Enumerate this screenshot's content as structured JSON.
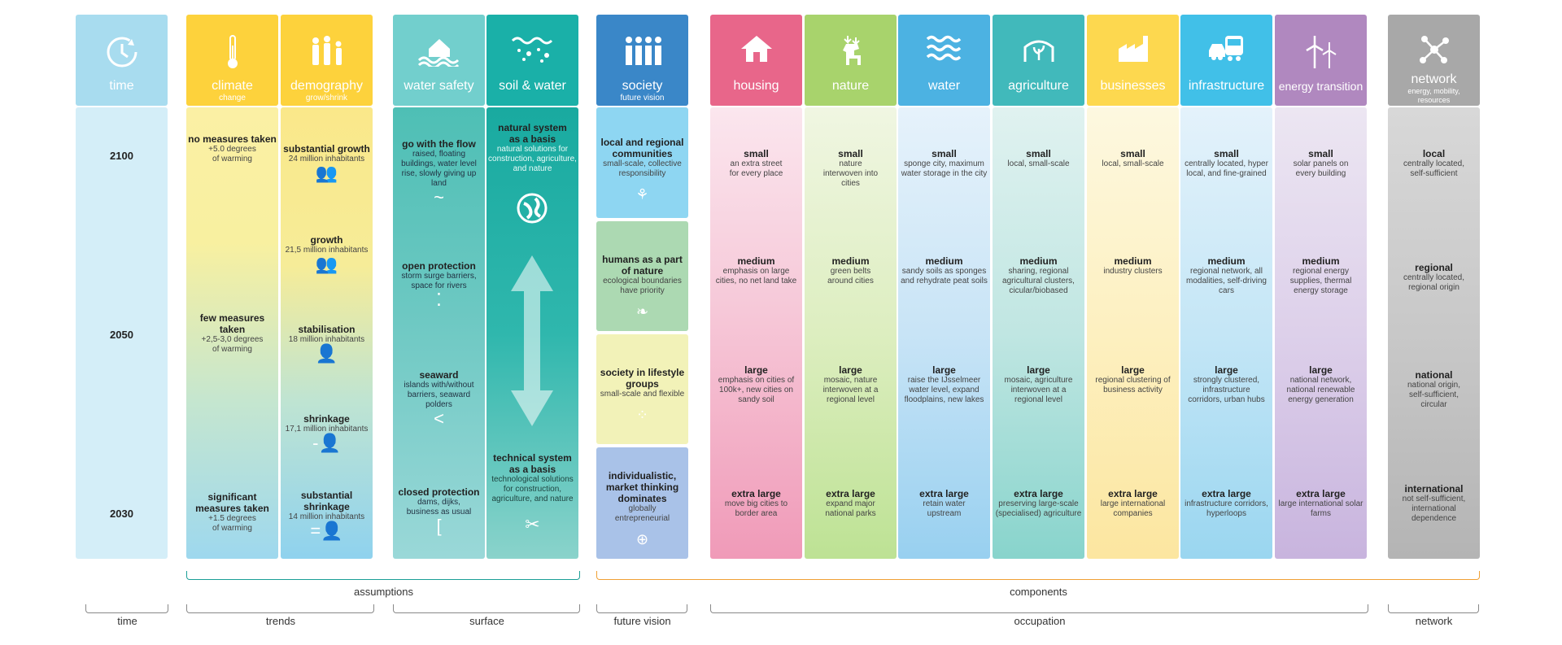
{
  "time": {
    "label": "time",
    "years": [
      "2100",
      "2050",
      "2030"
    ]
  },
  "climate": {
    "title": "climate",
    "sub": "change",
    "items": [
      {
        "t": "no measures taken",
        "d": "+5.0 degrees of warming"
      },
      {
        "t": "few measures taken",
        "d": "+2,5-3,0 degrees of warming"
      },
      {
        "t": "significant measures taken",
        "d": "+1.5 degrees of warming"
      }
    ]
  },
  "demography": {
    "title": "demography",
    "sub": "grow/shrink",
    "items": [
      {
        "t": "substantial growth",
        "d": "24 million inhabitants"
      },
      {
        "t": "growth",
        "d": "21,5 million inhabitants"
      },
      {
        "t": "stabilisation",
        "d": "18 million inhabitants"
      },
      {
        "t": "shrinkage",
        "d": "17,1 million inhabitants"
      },
      {
        "t": "substantial shrinkage",
        "d": "14 million inhabitants"
      }
    ]
  },
  "water_safety": {
    "title": "water safety",
    "items": [
      {
        "t": "go with the flow",
        "d": "raised, floating buildings, water level rise, slowly giving up land",
        "g": "~"
      },
      {
        "t": "open protection",
        "d": "storm surge barriers, space for rivers",
        "g": "⁚"
      },
      {
        "t": "seaward",
        "d": "islands with/without barriers, seaward polders",
        "g": "<"
      },
      {
        "t": "closed protection",
        "d": "dams, dijks, business as usual",
        "g": "["
      }
    ]
  },
  "soil_water": {
    "title": "soil & water",
    "items": [
      {
        "t": "natural system as a basis",
        "d": "natural solutions for construction, agriculture, and nature"
      },
      {
        "t": "technical system as a basis",
        "d": "technological solutions for construction, agriculture, and nature"
      }
    ]
  },
  "society": {
    "title": "society",
    "sub": "future vision",
    "items": [
      {
        "t": "local and regional communities",
        "d": "small-scale, collective responsibility"
      },
      {
        "t": "humans as a part of nature",
        "d": "ecological boundaries have priority"
      },
      {
        "t": "society in lifestyle groups",
        "d": "small-scale and flexible"
      },
      {
        "t": "individualistic, market thinking dominates",
        "d": "globally entrepreneurial"
      }
    ]
  },
  "occupation": [
    {
      "title": "housing",
      "items": [
        [
          "small",
          "an extra street for every place"
        ],
        [
          "medium",
          "emphasis on large cities, no net land take"
        ],
        [
          "large",
          "emphasis on cities of 100k+, new cities on sandy soil"
        ],
        [
          "extra large",
          "move big cities to border area"
        ]
      ]
    },
    {
      "title": "nature",
      "items": [
        [
          "small",
          "nature interwoven into cities"
        ],
        [
          "medium",
          "green belts around cities"
        ],
        [
          "large",
          "mosaic, nature interwoven at a regional level"
        ],
        [
          "extra large",
          "expand major national parks"
        ]
      ]
    },
    {
      "title": "water",
      "items": [
        [
          "small",
          "sponge city, maximum water storage in the city"
        ],
        [
          "medium",
          "sandy soils as sponges and rehydrate peat soils"
        ],
        [
          "large",
          "raise the IJsselmeer water level, expand floodplains, new lakes"
        ],
        [
          "extra large",
          "retain water upstream"
        ]
      ]
    },
    {
      "title": "agriculture",
      "items": [
        [
          "small",
          "local, small-scale"
        ],
        [
          "medium",
          "sharing, regional agricultural clusters, cicular/biobased"
        ],
        [
          "large",
          "mosaic, agriculture interwoven at a regional level"
        ],
        [
          "extra large",
          "preserving large-scale (specialised) agriculture"
        ]
      ]
    },
    {
      "title": "businesses",
      "items": [
        [
          "small",
          "local, small-scale"
        ],
        [
          "medium",
          "industry clusters"
        ],
        [
          "large",
          "regional clustering of business activity"
        ],
        [
          "extra large",
          "large international companies"
        ]
      ]
    },
    {
      "title": "infrastructure",
      "items": [
        [
          "small",
          "centrally located, hyper local, and fine-grained"
        ],
        [
          "medium",
          "regional network, all modalities, self-driving cars"
        ],
        [
          "large",
          "strongly clustered, infrastructure corridors, urban hubs"
        ],
        [
          "extra large",
          "infrastructure corridors, hyperloops"
        ]
      ]
    },
    {
      "title": "energy transition",
      "items": [
        [
          "small",
          "solar panels on every building"
        ],
        [
          "medium",
          "regional energy supplies, thermal energy storage"
        ],
        [
          "large",
          "national network, national renewable energy generation"
        ],
        [
          "extra large",
          "large international solar farms"
        ]
      ]
    }
  ],
  "network": {
    "title": "network",
    "sub": "energy, mobility, resources",
    "items": [
      {
        "t": "local",
        "d": "centrally located, self-sufficient"
      },
      {
        "t": "regional",
        "d": "centrally located, regional origin"
      },
      {
        "t": "national",
        "d": "national origin, self-sufficient, circular"
      },
      {
        "t": "international",
        "d": "not self-sufficient, international dependence"
      }
    ]
  },
  "braces": {
    "assumptions": "assumptions",
    "components": "components",
    "time": "time",
    "trends": "trends",
    "surface": "surface",
    "future_vision": "future vision",
    "occupation": "occupation",
    "network": "network"
  },
  "colors": {
    "time": "#a8dcef",
    "climate": "#fdd23c",
    "water_safety": "#72cfcd",
    "soil": "#1ab0a8",
    "society": "#3a87c8",
    "housing": "#e8668a",
    "nature": "#a8d36c",
    "water": "#4cb2e2",
    "agriculture": "#41b9bb",
    "businesses": "#fdd84f",
    "infrastructure": "#41c0e8",
    "energy": "#b088bf",
    "network": "#a8a8a8"
  }
}
